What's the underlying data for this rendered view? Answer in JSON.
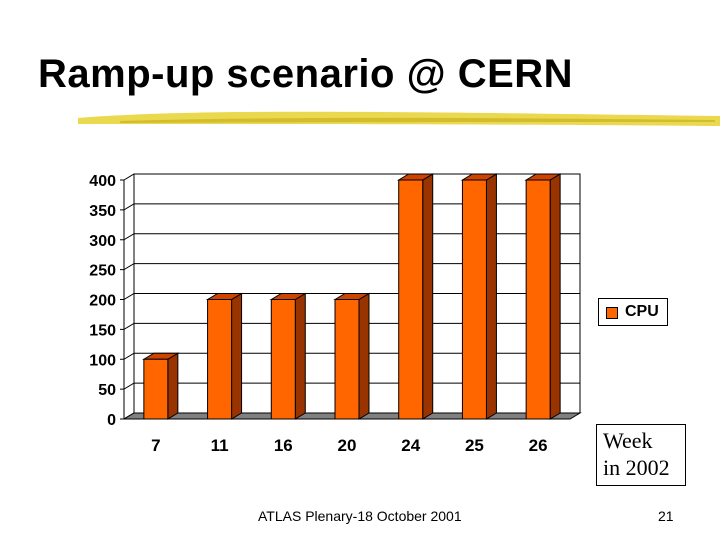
{
  "slide": {
    "title": "Ramp-up scenario @ CERN",
    "footer": "ATLAS Plenary-18 October 2001",
    "page_number": "21"
  },
  "chart_data": {
    "type": "bar",
    "categories": [
      "7",
      "11",
      "16",
      "20",
      "24",
      "25",
      "26"
    ],
    "series": [
      {
        "name": "CPU",
        "values": [
          100,
          200,
          200,
          200,
          400,
          400,
          400
        ]
      }
    ],
    "title": "",
    "xlabel": "Week in 2002",
    "xlabel_lines": [
      "Week",
      "in 2002"
    ],
    "ylabel": "",
    "ylim": [
      0,
      400
    ],
    "yticks": [
      "0",
      "50",
      "100",
      "150",
      "200",
      "250",
      "300",
      "350",
      "400"
    ],
    "grid": true,
    "legend": "right",
    "colors": {
      "bar_front": "#ff6600",
      "bar_side": "#993300",
      "bar_top": "#cc4400",
      "floor": "#808080",
      "accent_brush": "#e8d43c"
    }
  }
}
